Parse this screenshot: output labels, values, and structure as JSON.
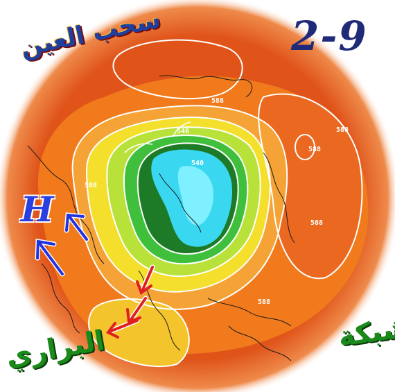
{
  "title": {
    "date": "2-9",
    "brand_top": "سحب العين",
    "brand_bottom_left": "البراري",
    "brand_bottom_right": "شبكة"
  },
  "map": {
    "pressure_system_label": "H",
    "contour_labels": [
      "588",
      "588",
      "588",
      "588",
      "588",
      "588",
      "540",
      "546"
    ],
    "colors": {
      "outer": "#e0541a",
      "orange": "#f07a1c",
      "light_orange": "#f5a236",
      "yellow": "#f3df2c",
      "yellow_green": "#b8e23a",
      "green": "#3fbf3c",
      "dark_green": "#1d7a26",
      "cyan": "#3ad8f0",
      "light_cyan": "#7ff0ff",
      "high_arrow": "#2233dd",
      "trough_arrow": "#e02020"
    },
    "arrows": [
      {
        "name": "high-arrow",
        "color": "blue"
      },
      {
        "name": "trough-arrow",
        "color": "red"
      }
    ]
  }
}
